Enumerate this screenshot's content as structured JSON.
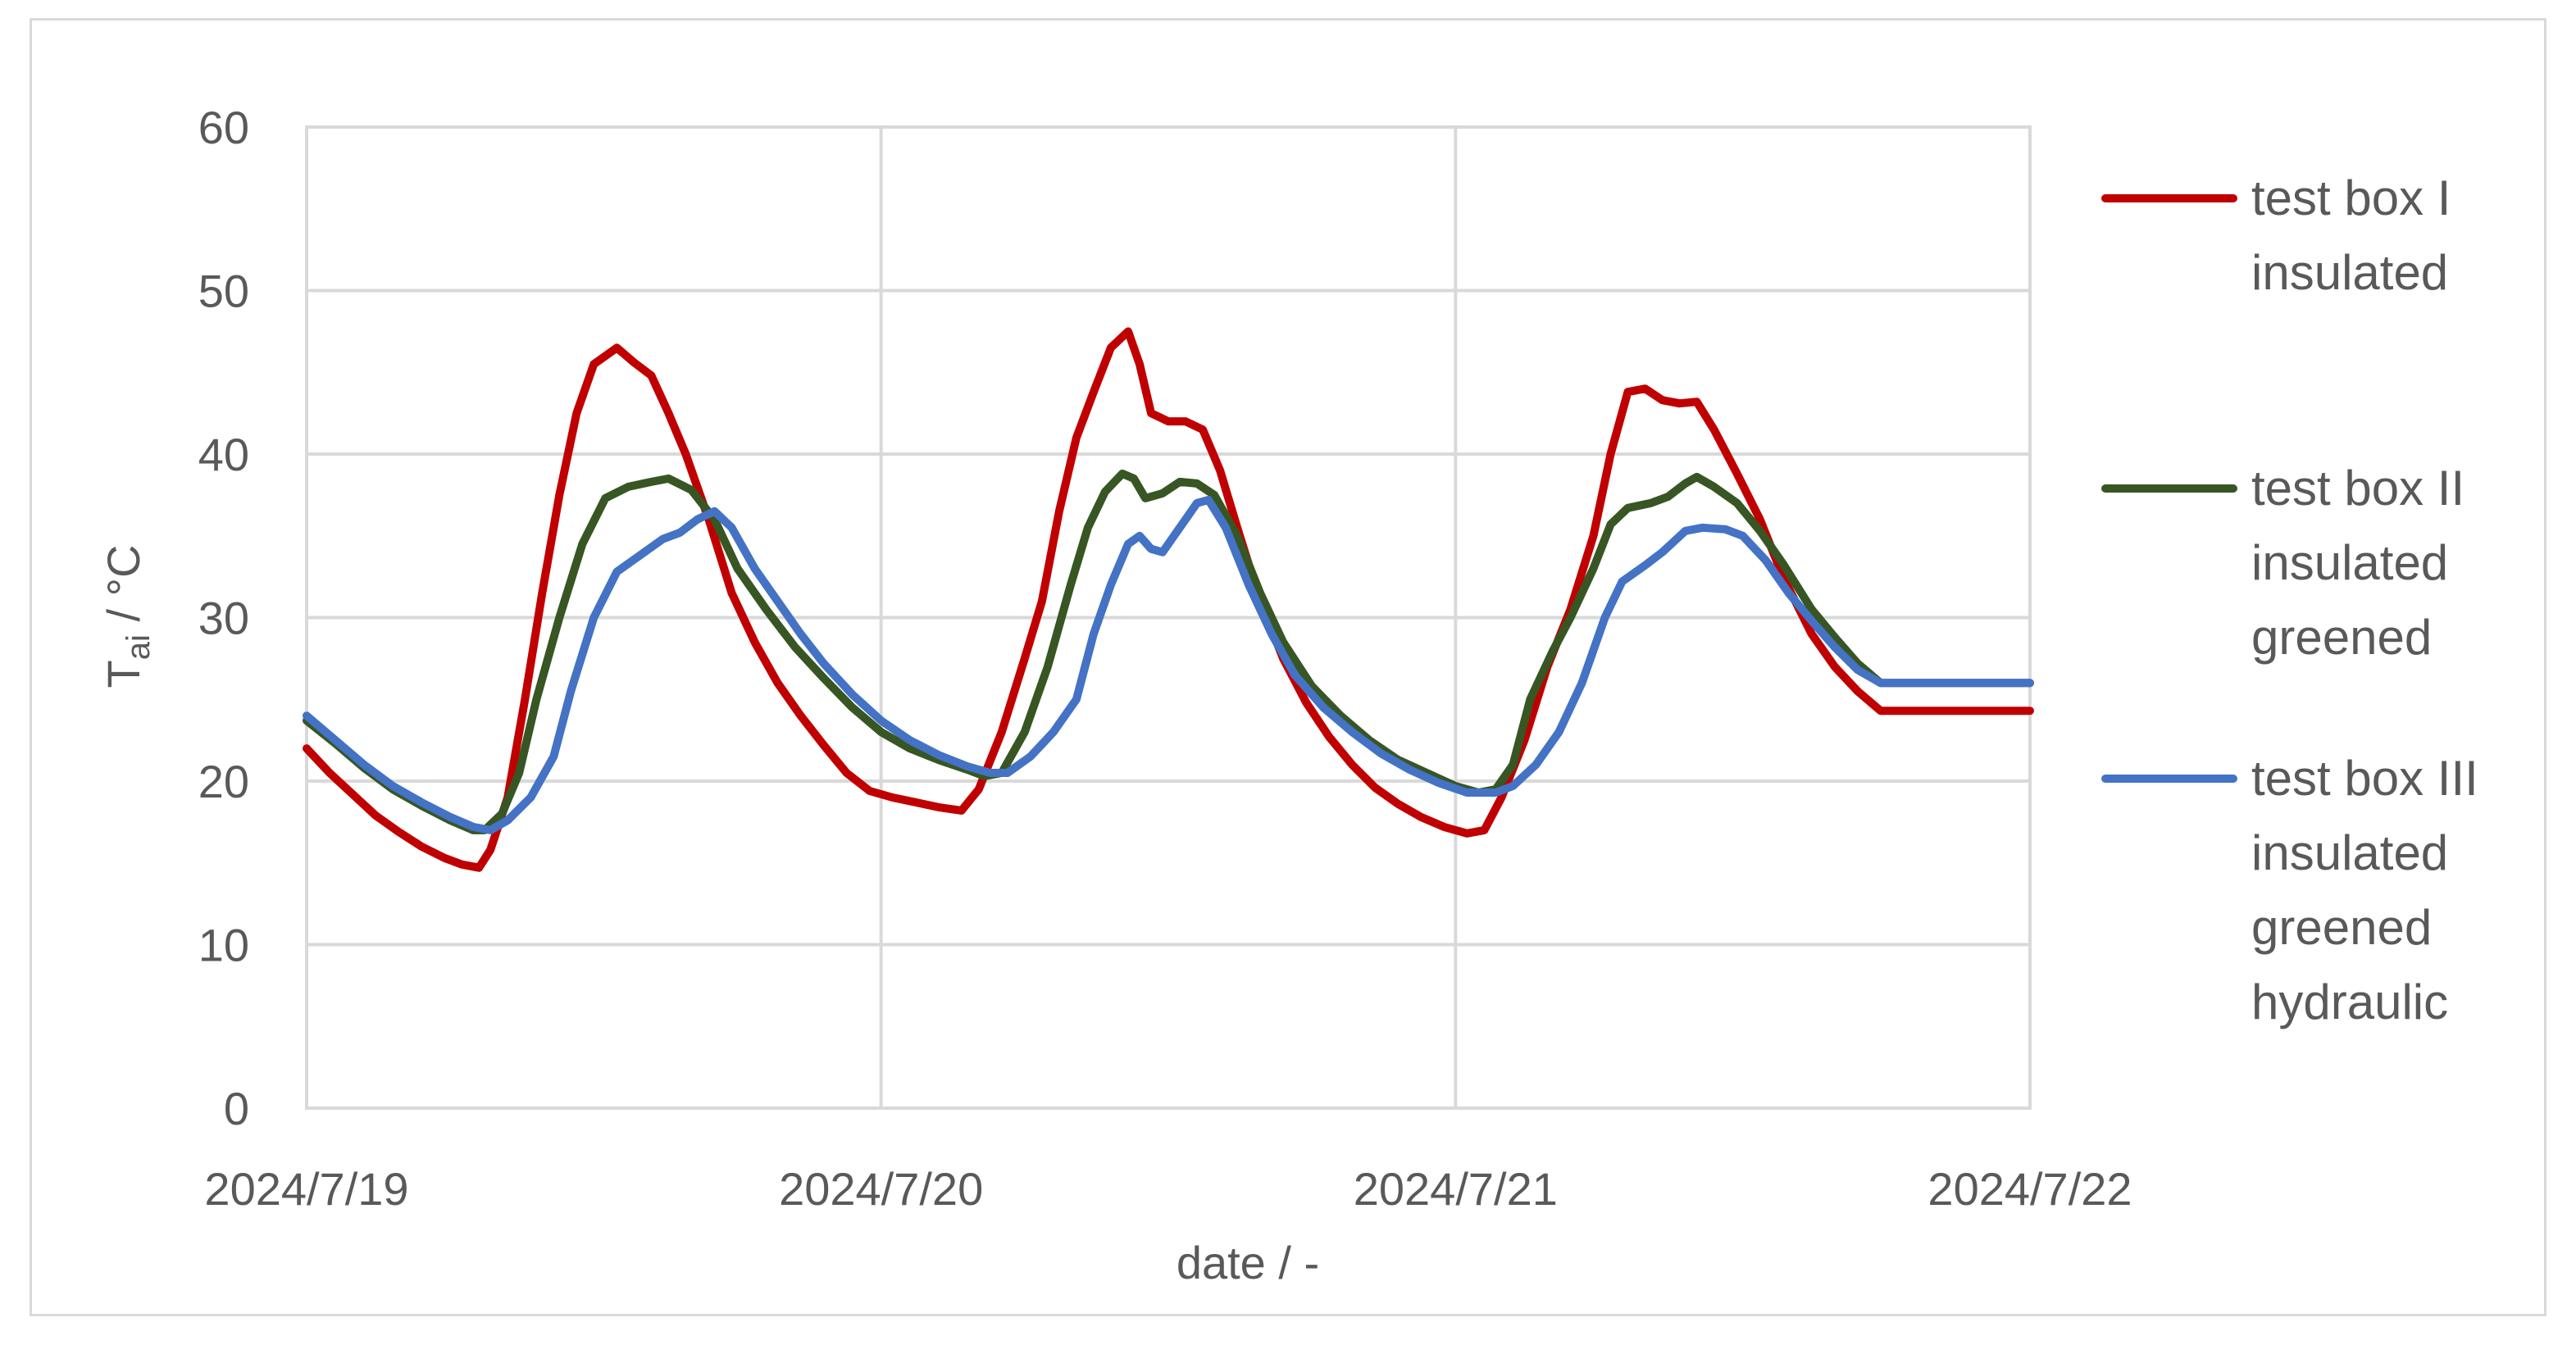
{
  "chart_data": {
    "type": "line",
    "title": "",
    "xlabel": "date / -",
    "ylabel_main": "T",
    "ylabel_sub": "ai",
    "ylabel_unit": " / °C",
    "x_ticks": [
      "2024/7/19",
      "2024/7/20",
      "2024/7/21",
      "2024/7/22"
    ],
    "xlim": [
      0,
      3
    ],
    "ylim": [
      0,
      60
    ],
    "y_ticks": [
      "0",
      "10",
      "20",
      "30",
      "40",
      "50",
      "60"
    ],
    "y_tick_values": [
      0,
      10,
      20,
      30,
      40,
      50,
      60
    ],
    "grid": true,
    "legend_position": "right",
    "series": [
      {
        "legend_lines": [
          "test box I",
          "insulated"
        ],
        "color": "#c00000",
        "points": [
          [
            0,
            22
          ],
          [
            0.04,
            20.5
          ],
          [
            0.08,
            19.2
          ],
          [
            0.12,
            17.9
          ],
          [
            0.16,
            16.9
          ],
          [
            0.2,
            16
          ],
          [
            0.24,
            15.3
          ],
          [
            0.27,
            14.9
          ],
          [
            0.3,
            14.7
          ],
          [
            0.32,
            15.8
          ],
          [
            0.35,
            19
          ],
          [
            0.38,
            25
          ],
          [
            0.41,
            31.5
          ],
          [
            0.44,
            37.5
          ],
          [
            0.47,
            42.5
          ],
          [
            0.5,
            45.5
          ],
          [
            0.54,
            46.5
          ],
          [
            0.57,
            45.6
          ],
          [
            0.6,
            44.8
          ],
          [
            0.63,
            42.5
          ],
          [
            0.66,
            40
          ],
          [
            0.7,
            36
          ],
          [
            0.74,
            31.5
          ],
          [
            0.78,
            28.5
          ],
          [
            0.82,
            26
          ],
          [
            0.86,
            24
          ],
          [
            0.9,
            22.2
          ],
          [
            0.94,
            20.5
          ],
          [
            0.98,
            19.4
          ],
          [
            1.02,
            19
          ],
          [
            1.06,
            18.7
          ],
          [
            1.1,
            18.4
          ],
          [
            1.14,
            18.2
          ],
          [
            1.17,
            19.5
          ],
          [
            1.21,
            23
          ],
          [
            1.25,
            27.5
          ],
          [
            1.28,
            31
          ],
          [
            1.31,
            36.5
          ],
          [
            1.34,
            41
          ],
          [
            1.37,
            43.8
          ],
          [
            1.4,
            46.5
          ],
          [
            1.43,
            47.5
          ],
          [
            1.45,
            45.5
          ],
          [
            1.47,
            42.5
          ],
          [
            1.5,
            42
          ],
          [
            1.53,
            42
          ],
          [
            1.56,
            41.5
          ],
          [
            1.59,
            39
          ],
          [
            1.62,
            35.5
          ],
          [
            1.66,
            31
          ],
          [
            1.7,
            27.5
          ],
          [
            1.74,
            24.8
          ],
          [
            1.78,
            22.7
          ],
          [
            1.82,
            21
          ],
          [
            1.86,
            19.6
          ],
          [
            1.9,
            18.6
          ],
          [
            1.94,
            17.8
          ],
          [
            1.98,
            17.2
          ],
          [
            2.02,
            16.8
          ],
          [
            2.05,
            17
          ],
          [
            2.08,
            19
          ],
          [
            2.12,
            22.5
          ],
          [
            2.16,
            27
          ],
          [
            2.2,
            30.5
          ],
          [
            2.24,
            35
          ],
          [
            2.27,
            40
          ],
          [
            2.3,
            43.8
          ],
          [
            2.33,
            44
          ],
          [
            2.36,
            43.3
          ],
          [
            2.39,
            43.1
          ],
          [
            2.42,
            43.2
          ],
          [
            2.45,
            41.5
          ],
          [
            2.49,
            38.8
          ],
          [
            2.53,
            36
          ],
          [
            2.57,
            32.5
          ],
          [
            2.62,
            29
          ],
          [
            2.66,
            27
          ],
          [
            2.7,
            25.5
          ],
          [
            2.74,
            24.3
          ],
          [
            3,
            24.3
          ]
        ]
      },
      {
        "legend_lines": [
          "test box II",
          "insulated",
          "greened"
        ],
        "color": "#375623",
        "points": [
          [
            0,
            23.7
          ],
          [
            0.05,
            22.3
          ],
          [
            0.1,
            20.8
          ],
          [
            0.15,
            19.5
          ],
          [
            0.2,
            18.5
          ],
          [
            0.25,
            17.6
          ],
          [
            0.29,
            17
          ],
          [
            0.31,
            17
          ],
          [
            0.34,
            18
          ],
          [
            0.37,
            20.5
          ],
          [
            0.4,
            25
          ],
          [
            0.44,
            30
          ],
          [
            0.48,
            34.5
          ],
          [
            0.52,
            37.3
          ],
          [
            0.56,
            38
          ],
          [
            0.6,
            38.3
          ],
          [
            0.63,
            38.5
          ],
          [
            0.67,
            37.8
          ],
          [
            0.71,
            36
          ],
          [
            0.75,
            33
          ],
          [
            0.8,
            30.5
          ],
          [
            0.85,
            28.2
          ],
          [
            0.9,
            26.3
          ],
          [
            0.95,
            24.5
          ],
          [
            1,
            23
          ],
          [
            1.05,
            22
          ],
          [
            1.1,
            21.3
          ],
          [
            1.15,
            20.7
          ],
          [
            1.18,
            20.3
          ],
          [
            1.21,
            20.5
          ],
          [
            1.25,
            23
          ],
          [
            1.29,
            27
          ],
          [
            1.33,
            32
          ],
          [
            1.36,
            35.5
          ],
          [
            1.39,
            37.7
          ],
          [
            1.42,
            38.8
          ],
          [
            1.44,
            38.5
          ],
          [
            1.46,
            37.3
          ],
          [
            1.49,
            37.6
          ],
          [
            1.52,
            38.3
          ],
          [
            1.55,
            38.2
          ],
          [
            1.58,
            37.5
          ],
          [
            1.62,
            35
          ],
          [
            1.66,
            31.5
          ],
          [
            1.7,
            28.5
          ],
          [
            1.75,
            25.8
          ],
          [
            1.8,
            24
          ],
          [
            1.85,
            22.5
          ],
          [
            1.9,
            21.3
          ],
          [
            1.95,
            20.5
          ],
          [
            2,
            19.7
          ],
          [
            2.04,
            19.3
          ],
          [
            2.07,
            19.5
          ],
          [
            2.1,
            21
          ],
          [
            2.13,
            25
          ],
          [
            2.17,
            28
          ],
          [
            2.2,
            30
          ],
          [
            2.24,
            33
          ],
          [
            2.27,
            35.7
          ],
          [
            2.3,
            36.7
          ],
          [
            2.34,
            37
          ],
          [
            2.37,
            37.4
          ],
          [
            2.4,
            38.2
          ],
          [
            2.42,
            38.6
          ],
          [
            2.45,
            38
          ],
          [
            2.49,
            37
          ],
          [
            2.53,
            35.3
          ],
          [
            2.57,
            33.3
          ],
          [
            2.62,
            30.5
          ],
          [
            2.66,
            28.8
          ],
          [
            2.7,
            27.2
          ],
          [
            2.74,
            26
          ],
          [
            3,
            26
          ]
        ]
      },
      {
        "legend_lines": [
          "test box III",
          "insulated",
          "greened",
          "hydraulic"
        ],
        "color": "#4472c4",
        "points": [
          [
            0,
            24
          ],
          [
            0.05,
            22.5
          ],
          [
            0.1,
            21
          ],
          [
            0.15,
            19.7
          ],
          [
            0.2,
            18.7
          ],
          [
            0.25,
            17.8
          ],
          [
            0.29,
            17.2
          ],
          [
            0.32,
            17
          ],
          [
            0.35,
            17.6
          ],
          [
            0.39,
            19
          ],
          [
            0.43,
            21.5
          ],
          [
            0.46,
            25.5
          ],
          [
            0.5,
            30
          ],
          [
            0.54,
            32.8
          ],
          [
            0.58,
            33.8
          ],
          [
            0.62,
            34.8
          ],
          [
            0.65,
            35.2
          ],
          [
            0.68,
            36
          ],
          [
            0.71,
            36.5
          ],
          [
            0.74,
            35.5
          ],
          [
            0.78,
            33
          ],
          [
            0.82,
            31
          ],
          [
            0.86,
            29
          ],
          [
            0.9,
            27.2
          ],
          [
            0.95,
            25.3
          ],
          [
            1,
            23.7
          ],
          [
            1.05,
            22.5
          ],
          [
            1.1,
            21.6
          ],
          [
            1.15,
            20.9
          ],
          [
            1.19,
            20.5
          ],
          [
            1.22,
            20.5
          ],
          [
            1.26,
            21.5
          ],
          [
            1.3,
            23
          ],
          [
            1.34,
            25
          ],
          [
            1.37,
            29
          ],
          [
            1.4,
            32
          ],
          [
            1.43,
            34.5
          ],
          [
            1.45,
            35
          ],
          [
            1.47,
            34.2
          ],
          [
            1.49,
            34
          ],
          [
            1.52,
            35.5
          ],
          [
            1.55,
            37
          ],
          [
            1.57,
            37.2
          ],
          [
            1.6,
            35.5
          ],
          [
            1.64,
            32
          ],
          [
            1.68,
            29
          ],
          [
            1.72,
            26.5
          ],
          [
            1.77,
            24.5
          ],
          [
            1.82,
            23
          ],
          [
            1.87,
            21.7
          ],
          [
            1.92,
            20.7
          ],
          [
            1.97,
            19.9
          ],
          [
            2.02,
            19.3
          ],
          [
            2.07,
            19.3
          ],
          [
            2.1,
            19.7
          ],
          [
            2.14,
            21
          ],
          [
            2.18,
            23
          ],
          [
            2.22,
            26
          ],
          [
            2.26,
            30
          ],
          [
            2.29,
            32.2
          ],
          [
            2.33,
            33.2
          ],
          [
            2.36,
            34
          ],
          [
            2.4,
            35.3
          ],
          [
            2.43,
            35.5
          ],
          [
            2.47,
            35.4
          ],
          [
            2.5,
            35
          ],
          [
            2.54,
            33.5
          ],
          [
            2.58,
            31.5
          ],
          [
            2.62,
            29.8
          ],
          [
            2.66,
            28.2
          ],
          [
            2.7,
            26.8
          ],
          [
            2.74,
            26
          ],
          [
            3,
            26
          ]
        ]
      }
    ]
  }
}
